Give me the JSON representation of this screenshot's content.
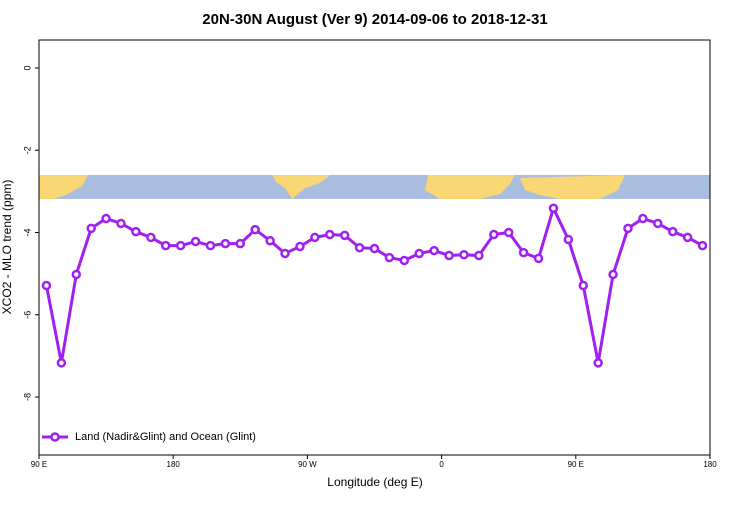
{
  "chart_data": {
    "type": "line",
    "title": "20N-30N August (Ver 9)   2014-09-06 to 2018-12-31",
    "x_label": "Longitude (deg E)",
    "y_label": "XCO2 - MLO trend (ppm)",
    "x": [
      95,
      105,
      115,
      125,
      135,
      145,
      155,
      165,
      175,
      185,
      195,
      205,
      215,
      225,
      235,
      245,
      255,
      265,
      275,
      285,
      295,
      305,
      315,
      325,
      335,
      345,
      355,
      365,
      375,
      385,
      395,
      405,
      415,
      425,
      435,
      445,
      455,
      465,
      475,
      485,
      495,
      505,
      515,
      525,
      535
    ],
    "series": [
      {
        "name": "Land (Nadir&Glint) and Ocean (Glint)",
        "color": "#a020f0",
        "values": [
          -5.29,
          -7.17,
          -5.02,
          -3.9,
          -3.66,
          -3.78,
          -3.98,
          -4.12,
          -4.32,
          -4.32,
          -4.22,
          -4.32,
          -4.27,
          -4.27,
          -3.93,
          -4.2,
          -4.51,
          -4.34,
          -4.12,
          -4.05,
          -4.07,
          -4.37,
          -4.39,
          -4.61,
          -4.68,
          -4.51,
          -4.44,
          -4.56,
          -4.54,
          -4.56,
          -4.05,
          -4.0,
          -4.49,
          -4.63,
          -3.41,
          -4.17,
          -5.29,
          -7.17,
          -5.02,
          -3.9,
          -3.66,
          -3.78,
          -3.98,
          -4.12,
          -4.32
        ]
      }
    ],
    "xlim": [
      90,
      540
    ],
    "xticks": [
      {
        "value": 90,
        "label": "90 E"
      },
      180,
      {
        "value": 270,
        "label": "90 W"
      },
      {
        "value": 360,
        "label": "0"
      },
      {
        "value": 450,
        "label": "90 E"
      },
      {
        "value": 540,
        "label": "180"
      }
    ],
    "ylim": [
      -9.41,
      0.68
    ],
    "yticks": [
      -8,
      -6,
      -4,
      -2,
      0
    ],
    "legend": "bottom-left"
  }
}
